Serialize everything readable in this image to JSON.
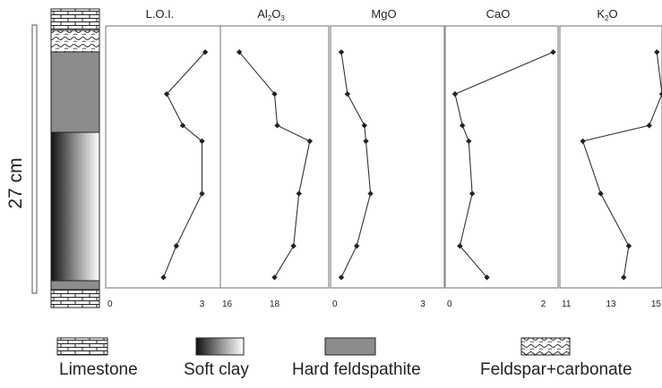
{
  "scale_label": "27 cm",
  "legend": [
    {
      "label": "Limestone",
      "pattern": "limestone"
    },
    {
      "label": "Soft clay",
      "pattern": "gradient"
    },
    {
      "label": "Hard feldspathite",
      "pattern": "gray"
    },
    {
      "label": "Feldspar+carbonate",
      "pattern": "wavy"
    }
  ],
  "colors": {
    "gray": "#8c8c8c",
    "line": "#333333",
    "frame": "#888888"
  },
  "chart_data": [
    {
      "type": "line",
      "title": "L.O.I.",
      "title_main": "L.O.I.",
      "title_sub": "",
      "title_tail": "",
      "xlim": [
        0,
        3.6
      ],
      "ticks": [
        {
          "v": 0,
          "label": "0"
        },
        {
          "v": 3,
          "label": "3"
        }
      ],
      "x": [
        3.1,
        1.9,
        2.4,
        3.0,
        3.0,
        2.2,
        1.8
      ],
      "depth": [
        0.1,
        0.26,
        0.38,
        0.44,
        0.64,
        0.84,
        0.96
      ]
    },
    {
      "type": "line",
      "title": "Al2O3",
      "title_main": "Al",
      "title_sub": "2",
      "title_tail": "O",
      "title_sub2": "3",
      "xlim": [
        16,
        20
      ],
      "ticks": [
        {
          "v": 16,
          "label": "16"
        },
        {
          "v": 18,
          "label": "18"
        }
      ],
      "x": [
        16.7,
        18.0,
        18.1,
        19.3,
        18.9,
        18.7,
        18.0
      ],
      "depth": [
        0.1,
        0.26,
        0.38,
        0.44,
        0.64,
        0.84,
        0.96
      ]
    },
    {
      "type": "line",
      "title": "MgO",
      "title_main": "MgO",
      "title_sub": "",
      "title_tail": "",
      "xlim": [
        0,
        3.7
      ],
      "ticks": [
        {
          "v": 0,
          "label": "0"
        },
        {
          "v": 3,
          "label": "3"
        }
      ],
      "x": [
        0.35,
        0.55,
        1.1,
        1.15,
        1.3,
        0.85,
        0.35
      ],
      "depth": [
        0.1,
        0.26,
        0.38,
        0.44,
        0.64,
        0.84,
        0.96
      ],
      "x_scale_note": "values read relative to axis"
    },
    {
      "type": "line",
      "title": "CaO",
      "title_main": "CaO",
      "title_sub": "",
      "title_tail": "",
      "xlim": [
        0,
        2.3
      ],
      "ticks": [
        {
          "v": 0,
          "label": "0"
        },
        {
          "v": 2,
          "label": "2"
        }
      ],
      "x": [
        2.2,
        0.2,
        0.35,
        0.48,
        0.55,
        0.3,
        0.85
      ],
      "depth": [
        0.1,
        0.26,
        0.38,
        0.44,
        0.64,
        0.84,
        0.96
      ]
    },
    {
      "type": "line",
      "title": "K2O",
      "title_main": "K",
      "title_sub": "2",
      "title_tail": "O",
      "xlim": [
        11,
        15
      ],
      "ticks": [
        {
          "v": 11,
          "label": "11"
        },
        {
          "v": 13,
          "label": "13"
        },
        {
          "v": 15,
          "label": "15"
        }
      ],
      "x": [
        14.8,
        15.0,
        14.5,
        11.9,
        12.6,
        13.7,
        13.5
      ],
      "depth": [
        0.1,
        0.26,
        0.38,
        0.44,
        0.64,
        0.84,
        0.96
      ]
    }
  ]
}
